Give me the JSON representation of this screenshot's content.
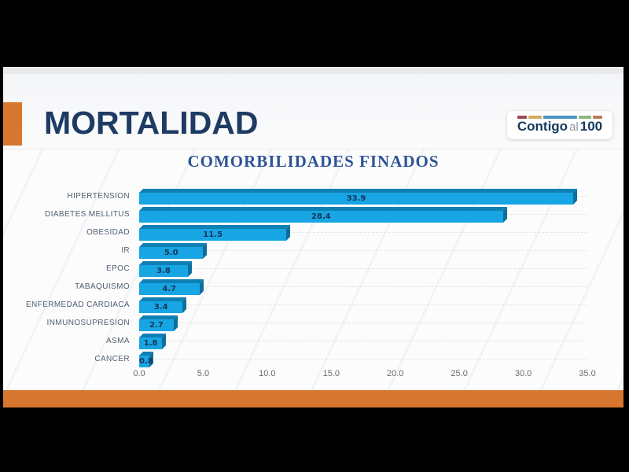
{
  "slide": {
    "title": "MORTALIDAD",
    "accent_color": "#D6762F",
    "logo": {
      "word1": "Contigo",
      "word2": "al",
      "word3": "100",
      "stripe_colors": [
        "#9A4A50",
        "#D4AA62",
        "#4A94BE",
        "#8CB87A",
        "#BB7A5E"
      ],
      "stripe_weights": [
        1.2,
        1.7,
        4.2,
        1.6,
        1.2
      ]
    }
  },
  "chart_data": {
    "type": "bar",
    "orientation": "horizontal",
    "title": "COMORBILIDADES FINADOS",
    "categories": [
      "HIPERTENSION",
      "DIABETES MELLITUS",
      "OBESIDAD",
      "IR",
      "EPOC",
      "TABAQUISMO",
      "ENFERMEDAD CARDIACA",
      "INMUNOSUPRESION",
      "ASMA",
      "CANCER"
    ],
    "values": [
      33.9,
      28.4,
      11.5,
      5.0,
      3.8,
      4.7,
      3.4,
      2.7,
      1.8,
      0.8
    ],
    "value_labels": [
      "33.9",
      "28.4",
      "11.5",
      "5.0",
      "3.8",
      "4.7",
      "3.4",
      "2.7",
      "1.8",
      "0.8"
    ],
    "xlim": [
      0,
      35
    ],
    "x_ticks": [
      0,
      5,
      10,
      15,
      20,
      25,
      30,
      35
    ],
    "x_tick_labels": [
      "0.0",
      "5.0",
      "10.0",
      "15.0",
      "20.0",
      "25.0",
      "30.0",
      "35.0"
    ],
    "grid": "dashed-horizontal",
    "legend": "none",
    "bar_color": "#18A5E3",
    "bar_top_color": "#0F80B4",
    "bar_side_color": "#0D6F9D",
    "value_label_color": "#14365A"
  }
}
